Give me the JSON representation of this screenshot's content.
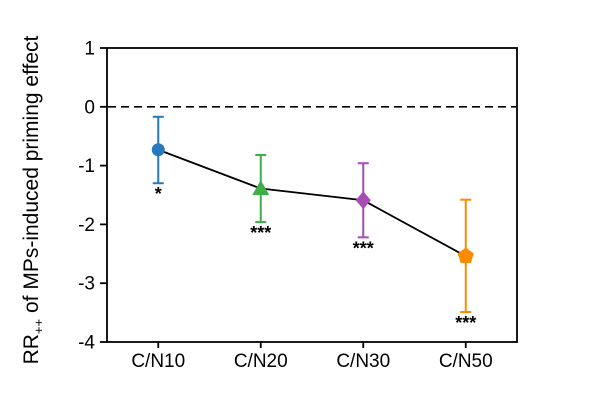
{
  "figure": {
    "background": "#ffffff",
    "axis_color": "#000000",
    "text_color": "#000000"
  },
  "y_axis_title": {
    "prefix": "RR",
    "subscript": "++",
    "suffix": " of MPs-induced priming effect"
  },
  "chart_data": {
    "type": "line",
    "title": "",
    "xlabel": "",
    "ylabel": "RR++ of MPs-induced priming effect",
    "categories": [
      "C/N10",
      "C/N20",
      "C/N30",
      "C/N50"
    ],
    "series": [
      {
        "name": "MPs-induced priming effect",
        "values": [
          -0.73,
          -1.39,
          -1.59,
          -2.54
        ],
        "error_upper": [
          -0.17,
          -0.82,
          -0.96,
          -1.58
        ],
        "error_lower": [
          -1.3,
          -1.96,
          -2.22,
          -3.49
        ],
        "significance": [
          "*",
          "***",
          "***",
          "***"
        ],
        "marker_shapes": [
          "circle",
          "triangle-up",
          "diamond",
          "pentagon"
        ],
        "marker_colors": [
          "#2878BE",
          "#3FAE49",
          "#A64CB5",
          "#FB8B00"
        ],
        "line_color": "#000000"
      }
    ],
    "yticks": [
      1,
      0,
      -1,
      -2,
      -3,
      -4
    ],
    "ylim": [
      -4,
      1
    ],
    "reference_line": {
      "y": 0,
      "style": "dashed",
      "color": "#000000"
    },
    "grid": false,
    "legend": false
  }
}
